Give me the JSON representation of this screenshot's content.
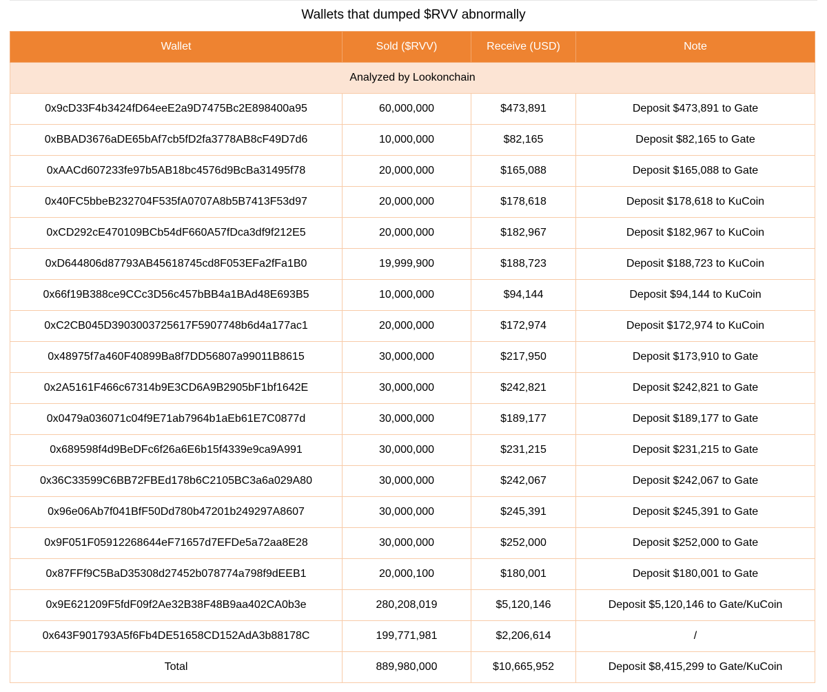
{
  "title": "Wallets that dumped $RVV abnormally",
  "colors": {
    "header": "#ee8331",
    "subheader": "#fce4d4",
    "border": "#f8cba8"
  },
  "columns": [
    "Wallet",
    "Sold ($RVV)",
    "Receive (USD)",
    "Note"
  ],
  "subheader": "Analyzed by Lookonchain",
  "rows": [
    [
      "0x9cD33F4b3424fD64eeE2a9D7475Bc2E898400a95",
      "60,000,000",
      "$473,891",
      "Deposit $473,891 to Gate"
    ],
    [
      "0xBBAD3676aDE65bAf7cb5fD2fa3778AB8cF49D7d6",
      "10,000,000",
      "$82,165",
      "Deposit $82,165 to Gate"
    ],
    [
      "0xAACd607233fe97b5AB18bc4576d9BcBa31495f78",
      "20,000,000",
      "$165,088",
      "Deposit $165,088 to Gate"
    ],
    [
      "0x40FC5bbeB232704F535fA0707A8b5B7413F53d97",
      "20,000,000",
      "$178,618",
      "Deposit $178,618 to KuCoin"
    ],
    [
      "0xCD292cE470109BCb54dF660A57fDca3df9f212E5",
      "20,000,000",
      "$182,967",
      "Deposit $182,967 to KuCoin"
    ],
    [
      "0xD644806d87793AB45618745cd8F053EFa2fFa1B0",
      "19,999,900",
      "$188,723",
      "Deposit $188,723 to KuCoin"
    ],
    [
      "0x66f19B388ce9CCc3D56c457bBB4a1BAd48E693B5",
      "10,000,000",
      "$94,144",
      "Deposit $94,144 to KuCoin"
    ],
    [
      "0xC2CB045D3903003725617F5907748b6d4a177ac1",
      "20,000,000",
      "$172,974",
      "Deposit $172,974 to KuCoin"
    ],
    [
      "0x48975f7a460F40899Ba8f7DD56807a99011B8615",
      "30,000,000",
      "$217,950",
      "Deposit $173,910 to Gate"
    ],
    [
      "0x2A5161F466c67314b9E3CD6A9B2905bF1bf1642E",
      "30,000,000",
      "$242,821",
      "Deposit $242,821 to Gate"
    ],
    [
      "0x0479a036071c04f9E71ab7964b1aEb61E7C0877d",
      "30,000,000",
      "$189,177",
      "Deposit $189,177 to Gate"
    ],
    [
      "0x689598f4d9BeDFc6f26a6E6b15f4339e9ca9A991",
      "30,000,000",
      "$231,215",
      "Deposit $231,215 to Gate"
    ],
    [
      "0x36C33599C6BB72FBEd178b6C2105BC3a6a029A80",
      "30,000,000",
      "$242,067",
      "Deposit $242,067 to Gate"
    ],
    [
      "0x96e06Ab7f041BfF50Dd780b47201b249297A8607",
      "30,000,000",
      "$245,391",
      "Deposit $245,391 to Gate"
    ],
    [
      "0x9F051F05912268644eF71657d7EFDe5a72aa8E28",
      "30,000,000",
      "$252,000",
      "Deposit $252,000 to Gate"
    ],
    [
      "0x87FFf9C5BaD35308d27452b078774a798f9dEEB1",
      "20,000,100",
      "$180,001",
      "Deposit $180,001 to Gate"
    ],
    [
      "0x9E621209F5fdF09f2Ae32B38F48B9aa402CA0b3e",
      "280,208,019",
      "$5,120,146",
      "Deposit $5,120,146 to Gate/KuCoin"
    ],
    [
      "0x643F901793A5f6Fb4DE51658CD152AdA3b88178C",
      "199,771,981",
      "$2,206,614",
      "/"
    ]
  ],
  "total": [
    "Total",
    "889,980,000",
    "$10,665,952",
    "Deposit $8,415,299 to Gate/KuCoin"
  ]
}
